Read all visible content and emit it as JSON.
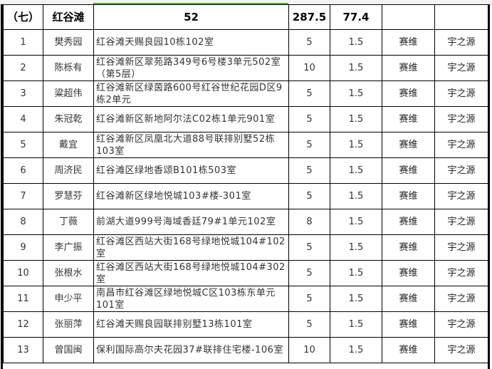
{
  "header": {
    "section": "（七）",
    "district": "红谷滩",
    "count": "52",
    "area": "287.5",
    "amount": "77.4"
  },
  "rows": [
    {
      "no": "1",
      "name": "樊秀园",
      "addr": "红谷滩天赐良园10栋102室",
      "area": "5",
      "price": "1.5",
      "brand": "赛维",
      "vendor": "宇之源"
    },
    {
      "no": "2",
      "name": "陈栎有",
      "addr": "红谷滩新区翠苑路349号6号楼3单元502室（第5层）",
      "area": "10",
      "price": "1.5",
      "brand": "赛维",
      "vendor": "宇之源"
    },
    {
      "no": "3",
      "name": "粱超伟",
      "addr": "红谷滩新区绿茵路600号红谷世纪花园D区9栋2单元",
      "area": "5",
      "price": "1.5",
      "brand": "赛维",
      "vendor": "宇之源"
    },
    {
      "no": "4",
      "name": "朱冠乾",
      "addr": "红谷滩新区新地阿尔法C02栋1单元901室",
      "area": "5",
      "price": "1.5",
      "brand": "赛维",
      "vendor": "宇之源"
    },
    {
      "no": "5",
      "name": "戴宜",
      "addr": "红谷滩新区凤凰北大道88号联排别墅52栋103室",
      "area": "5",
      "price": "1.5",
      "brand": "赛维",
      "vendor": "宇之源"
    },
    {
      "no": "6",
      "name": "周济民",
      "addr": "红谷滩区绿地香颂B101栋503室",
      "area": "5",
      "price": "1.5",
      "brand": "赛维",
      "vendor": "宇之源"
    },
    {
      "no": "7",
      "name": "罗慧芬",
      "addr": "红谷滩新区绿地悦城103#楼-301室",
      "area": "5",
      "price": "1.5",
      "brand": "赛维",
      "vendor": "宇之源"
    },
    {
      "no": "8",
      "name": "丁薇",
      "addr": "前湖大道999号海域香廷79#1单元102室",
      "area": "8",
      "price": "1.5",
      "brand": "赛维",
      "vendor": "宇之源"
    },
    {
      "no": "9",
      "name": "李广振",
      "addr": "红谷滩区西站大街168号绿地悦城104#102室",
      "area": "5",
      "price": "1.5",
      "brand": "赛维",
      "vendor": "宇之源"
    },
    {
      "no": "10",
      "name": "张根水",
      "addr": "红谷滩区西站大街168号绿地悦城104#302室",
      "area": "5",
      "price": "1.5",
      "brand": "赛维",
      "vendor": "宇之源"
    },
    {
      "no": "11",
      "name": "申少平",
      "addr": "南昌市红谷滩区绿地悦城C区103栋东单元101室",
      "area": "5",
      "price": "1.5",
      "brand": "赛维",
      "vendor": "宇之源"
    },
    {
      "no": "12",
      "name": "张丽萍",
      "addr": "红谷滩天赐良园联排别墅13栋101室",
      "area": "5",
      "price": "1.5",
      "brand": "赛维",
      "vendor": "宇之源"
    },
    {
      "no": "13",
      "name": "曾国闽",
      "addr": "保利国际高尔夫花园37#联排住宅楼-106室",
      "area": "10",
      "price": "1.5",
      "brand": "赛维",
      "vendor": "宇之源"
    }
  ]
}
